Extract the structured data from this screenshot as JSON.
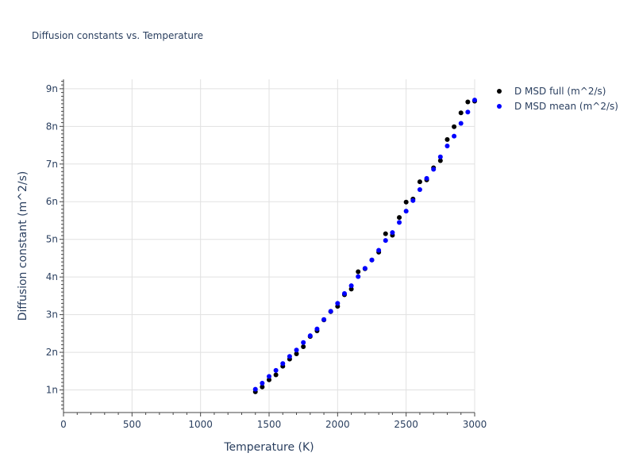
{
  "chart_data": {
    "type": "scatter",
    "title": "Diffusion constants vs. Temperature",
    "xlabel": "Temperature (K)",
    "ylabel": "Diffusion constant (m^2/s)",
    "xlim": [
      0,
      3000
    ],
    "ylim": [
      4e-10,
      9.25e-09
    ],
    "x_ticks": [
      0,
      500,
      1000,
      1500,
      2000,
      2500,
      3000
    ],
    "x_tick_labels": [
      "0",
      "500",
      "1000",
      "1500",
      "2000",
      "2500",
      "3000"
    ],
    "y_ticks": [
      1e-09,
      2e-09,
      3e-09,
      4e-09,
      5e-09,
      6e-09,
      7e-09,
      8e-09,
      9e-09
    ],
    "y_tick_labels": [
      "1n",
      "2n",
      "3n",
      "4n",
      "5n",
      "6n",
      "7n",
      "8n",
      "9n"
    ],
    "grid": true,
    "legend_position": "top-right-outside",
    "x": [
      1400,
      1450,
      1500,
      1550,
      1600,
      1650,
      1700,
      1750,
      1800,
      1850,
      1900,
      1950,
      2000,
      2050,
      2100,
      2150,
      2200,
      2250,
      2300,
      2350,
      2400,
      2450,
      2500,
      2550,
      2600,
      2650,
      2700,
      2750,
      2800,
      2850,
      2900,
      2950,
      3000
    ],
    "series": [
      {
        "name": "D MSD full (m^2/s)",
        "color": "#000000",
        "values": [
          9.5e-10,
          1.08e-09,
          1.27e-09,
          1.4e-09,
          1.63e-09,
          1.82e-09,
          1.96e-09,
          2.15e-09,
          2.42e-09,
          2.57e-09,
          2.86e-09,
          3.08e-09,
          3.22e-09,
          3.53e-09,
          3.68e-09,
          4.14e-09,
          4.22e-09,
          4.45e-09,
          4.66e-09,
          5.15e-09,
          5.11e-09,
          5.58e-09,
          5.99e-09,
          6.07e-09,
          6.53e-09,
          6.58e-09,
          6.9e-09,
          7.09e-09,
          7.65e-09,
          7.99e-09,
          8.36e-09,
          8.65e-09,
          8.67e-09
        ]
      },
      {
        "name": "D MSD mean (m^2/s)",
        "color": "#0000ff",
        "values": [
          1.02e-09,
          1.18e-09,
          1.36e-09,
          1.52e-09,
          1.7e-09,
          1.89e-09,
          2.06e-09,
          2.26e-09,
          2.44e-09,
          2.62e-09,
          2.87e-09,
          3.09e-09,
          3.3e-09,
          3.56e-09,
          3.77e-09,
          4.01e-09,
          4.23e-09,
          4.45e-09,
          4.71e-09,
          4.97e-09,
          5.18e-09,
          5.45e-09,
          5.75e-09,
          6.03e-09,
          6.32e-09,
          6.62e-09,
          6.86e-09,
          7.19e-09,
          7.48e-09,
          7.74e-09,
          8.08e-09,
          8.38e-09,
          8.7e-09
        ]
      }
    ]
  }
}
